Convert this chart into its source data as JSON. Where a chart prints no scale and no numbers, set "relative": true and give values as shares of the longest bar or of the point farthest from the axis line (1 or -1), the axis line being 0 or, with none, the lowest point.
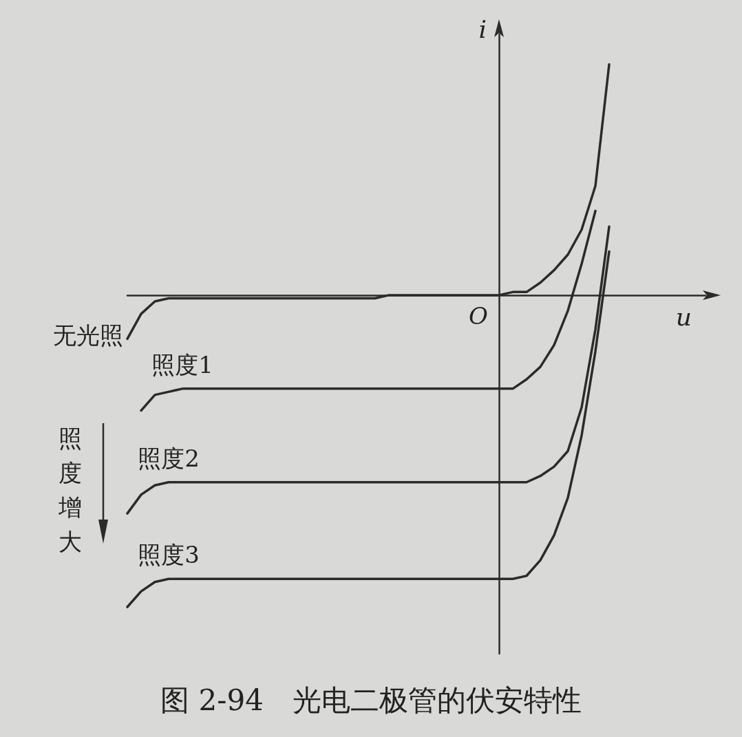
{
  "chart_data": {
    "type": "line",
    "title": "图 2-94　光电二极管的伏安特性",
    "xlabel": "u",
    "ylabel": "i",
    "relative": true,
    "marker": "none",
    "line_style": "solid",
    "legend": false,
    "grid": false,
    "annotations": [
      "照度增大",
      "O"
    ],
    "categories": [
      null,
      null,
      null,
      null,
      null,
      null,
      null,
      null,
      null,
      null,
      null,
      null,
      null,
      null,
      null,
      null,
      null,
      null,
      null,
      null,
      null,
      null,
      null,
      null,
      null,
      null,
      null,
      null,
      null,
      null,
      null,
      null,
      null,
      null,
      null,
      null,
      null,
      null,
      null,
      null,
      null,
      null,
      null
    ],
    "series": [
      {
        "name": "无光照",
        "color": "#2b2b2b",
        "values": [
          -0.14,
          -0.06,
          -0.02,
          -0.01,
          -0.01,
          -0.01,
          -0.01,
          -0.01,
          -0.01,
          -0.01,
          -0.01,
          -0.01,
          -0.01,
          -0.01,
          -0.01,
          -0.01,
          -0.01,
          -0.01,
          -0.01,
          0,
          0,
          0,
          0,
          0,
          0,
          0,
          0,
          0,
          0.01,
          0.01,
          0.04,
          0.08,
          0.13,
          0.21,
          0.35,
          0.74,
          null,
          null,
          null,
          null,
          null,
          null,
          null
        ]
      },
      {
        "name": "照度1",
        "color": "#2b2b2b",
        "values": [
          null,
          -0.37,
          -0.32,
          -0.31,
          -0.3,
          -0.3,
          -0.3,
          -0.3,
          -0.3,
          -0.3,
          -0.3,
          -0.3,
          -0.3,
          -0.3,
          -0.3,
          -0.3,
          -0.3,
          -0.3,
          -0.3,
          -0.3,
          -0.3,
          -0.3,
          -0.3,
          -0.3,
          -0.3,
          -0.3,
          -0.3,
          -0.3,
          -0.3,
          -0.27,
          -0.23,
          -0.16,
          -0.05,
          0.1,
          0.27,
          null,
          null,
          null,
          null,
          null,
          null,
          null,
          null
        ]
      },
      {
        "name": "照度2",
        "color": "#2b2b2b",
        "values": [
          -0.7,
          -0.64,
          -0.61,
          -0.6,
          -0.6,
          -0.6,
          -0.6,
          -0.6,
          -0.6,
          -0.6,
          -0.6,
          -0.6,
          -0.6,
          -0.6,
          -0.6,
          -0.6,
          -0.6,
          -0.6,
          -0.6,
          -0.6,
          -0.6,
          -0.6,
          -0.6,
          -0.6,
          -0.6,
          -0.6,
          -0.6,
          -0.6,
          -0.6,
          -0.6,
          -0.58,
          -0.55,
          -0.5,
          -0.36,
          -0.11,
          0.22,
          null,
          null,
          null,
          null,
          null,
          null,
          null
        ]
      },
      {
        "name": "照度3",
        "color": "#2b2b2b",
        "values": [
          -1,
          -0.95,
          -0.92,
          -0.91,
          -0.91,
          -0.91,
          -0.91,
          -0.91,
          -0.91,
          -0.91,
          -0.91,
          -0.91,
          -0.91,
          -0.91,
          -0.91,
          -0.91,
          -0.91,
          -0.91,
          -0.91,
          -0.91,
          -0.91,
          -0.91,
          -0.91,
          -0.91,
          -0.91,
          -0.91,
          -0.91,
          -0.91,
          -0.91,
          -0.9,
          -0.85,
          -0.77,
          -0.65,
          -0.45,
          -0.18,
          0.14,
          null,
          null,
          null,
          null,
          null,
          null,
          null
        ]
      }
    ]
  }
}
